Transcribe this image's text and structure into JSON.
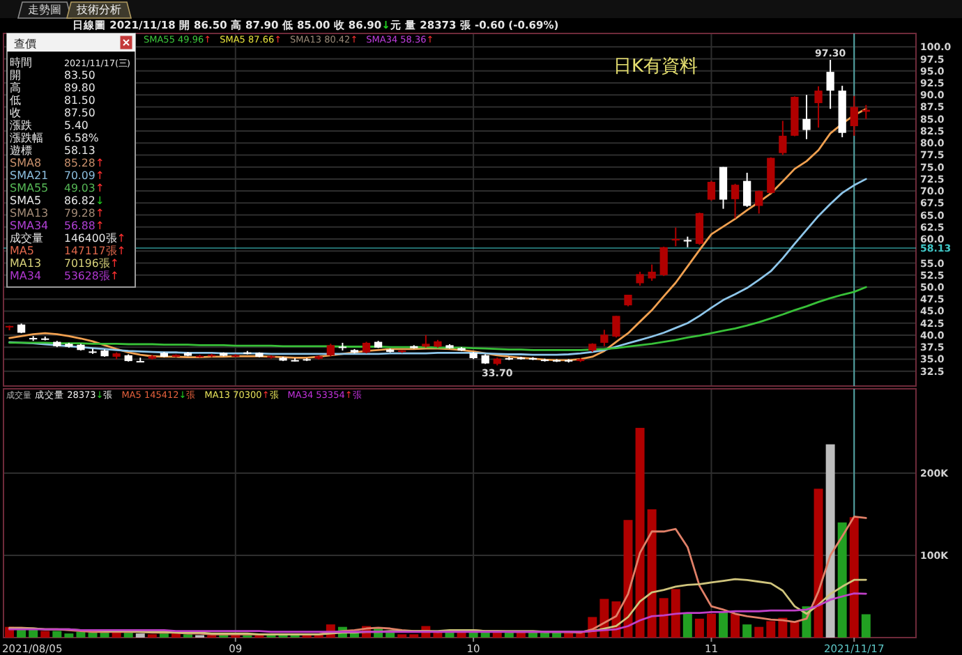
{
  "chart_data": [
    {
      "type": "candlestick",
      "subtitle": "日線圖  2021/11/18 開 86.50 高 87.90 低 85.00 收 86.90↓元 量 28373 張 -0.60 (-0.69%)",
      "categories": [
        null,
        null,
        null,
        null,
        null,
        null,
        null,
        null,
        null,
        null,
        null,
        null,
        null,
        null,
        null,
        null,
        null,
        null,
        null,
        "09",
        null,
        null,
        null,
        null,
        null,
        null,
        null,
        null,
        null,
        null,
        null,
        null,
        null,
        null,
        null,
        null,
        null,
        null,
        null,
        "10",
        null,
        null,
        null,
        null,
        null,
        null,
        null,
        null,
        null,
        null,
        null,
        null,
        null,
        null,
        null,
        null,
        null,
        null,
        null,
        "11",
        null,
        null,
        null,
        null,
        null,
        null,
        null,
        null,
        null,
        null,
        null,
        "2021/11/17",
        null
      ],
      "ohlc": [
        [
          41.6,
          42.0,
          41.0,
          41.9
        ],
        [
          42.2,
          42.4,
          40.4,
          40.5
        ],
        [
          39.4,
          39.8,
          38.8,
          39.2
        ],
        [
          39.3,
          39.7,
          38.9,
          39.3
        ],
        [
          38.6,
          38.8,
          37.5,
          37.7
        ],
        [
          38.2,
          38.4,
          37.4,
          37.6
        ],
        [
          38.0,
          38.2,
          36.8,
          36.9
        ],
        [
          36.6,
          37.2,
          36.1,
          36.6
        ],
        [
          36.8,
          37.0,
          35.5,
          35.6
        ],
        [
          35.5,
          36.4,
          35.0,
          36.2
        ],
        [
          35.8,
          36.0,
          34.5,
          34.6
        ],
        [
          34.6,
          35.3,
          34.4,
          34.6
        ],
        [
          35.1,
          35.9,
          34.9,
          35.6
        ],
        [
          36.3,
          36.5,
          35.4,
          35.5
        ],
        [
          35.5,
          36.0,
          35.4,
          35.9
        ],
        [
          36.3,
          36.5,
          35.6,
          35.7
        ],
        [
          35.5,
          35.9,
          35.3,
          35.7
        ],
        [
          35.6,
          36.1,
          35.4,
          35.9
        ],
        [
          36.3,
          36.4,
          35.6,
          35.7
        ],
        [
          35.6,
          36.0,
          35.4,
          35.8
        ],
        [
          36.4,
          36.7,
          36.0,
          36.4
        ],
        [
          36.3,
          36.4,
          35.4,
          35.5
        ],
        [
          35.4,
          35.8,
          35.1,
          35.6
        ],
        [
          35.3,
          35.5,
          34.6,
          34.7
        ],
        [
          34.8,
          35.2,
          34.5,
          34.8
        ],
        [
          35.0,
          35.2,
          34.6,
          34.8
        ],
        [
          35.1,
          35.8,
          34.9,
          35.6
        ],
        [
          35.8,
          38.2,
          35.6,
          37.9
        ],
        [
          37.6,
          38.4,
          36.8,
          37.5
        ],
        [
          36.9,
          37.1,
          36.2,
          36.4
        ],
        [
          36.4,
          38.6,
          36.2,
          38.4
        ],
        [
          38.6,
          38.8,
          37.3,
          37.4
        ],
        [
          37.0,
          37.2,
          36.4,
          36.5
        ],
        [
          36.6,
          36.9,
          36.3,
          36.8
        ],
        [
          37.7,
          37.9,
          37.2,
          37.3
        ],
        [
          37.6,
          40.0,
          37.4,
          38.2
        ],
        [
          37.6,
          39.0,
          37.4,
          38.7
        ],
        [
          37.9,
          38.1,
          37.2,
          37.3
        ],
        [
          37.3,
          37.5,
          36.7,
          36.8
        ],
        [
          36.3,
          36.5,
          35.0,
          35.2
        ],
        [
          35.8,
          36.0,
          34.0,
          34.1
        ],
        [
          34.0,
          35.3,
          33.7,
          35.1
        ],
        [
          35.2,
          35.5,
          34.8,
          35.1
        ],
        [
          35.3,
          35.5,
          34.9,
          35.0
        ],
        [
          35.2,
          35.4,
          34.8,
          34.9
        ],
        [
          34.9,
          35.1,
          34.5,
          34.6
        ],
        [
          34.8,
          35.0,
          34.4,
          34.5
        ],
        [
          34.8,
          35.0,
          34.3,
          34.5
        ],
        [
          34.6,
          35.2,
          34.4,
          35.0
        ],
        [
          36.8,
          38.3,
          36.5,
          38.2
        ],
        [
          38.4,
          41.1,
          37.7,
          40.1
        ],
        [
          39.7,
          44.0,
          39.5,
          44.0
        ],
        [
          46.2,
          48.4,
          46.0,
          48.4
        ],
        [
          50.8,
          53.2,
          50.3,
          52.7
        ],
        [
          51.8,
          54.7,
          51.3,
          53.2
        ],
        [
          52.5,
          58.4,
          52.3,
          58.3
        ],
        [
          59.8,
          62.4,
          58.5,
          60.0
        ],
        [
          59.8,
          60.5,
          58.3,
          59.5
        ],
        [
          59.0,
          65.5,
          58.8,
          65.4
        ],
        [
          68.2,
          72.1,
          68.0,
          71.9
        ],
        [
          75.0,
          75.0,
          66.3,
          68.2
        ],
        [
          68.3,
          71.5,
          64.3,
          71.3
        ],
        [
          72.1,
          73.8,
          66.7,
          66.9
        ],
        [
          66.9,
          70.1,
          65.3,
          70.0
        ],
        [
          69.6,
          77.0,
          69.5,
          76.9
        ],
        [
          77.9,
          84.6,
          77.5,
          81.5
        ],
        [
          81.5,
          89.7,
          81.4,
          89.6
        ],
        [
          85.0,
          90.0,
          80.8,
          82.7
        ],
        [
          88.3,
          91.8,
          83.2,
          90.9
        ],
        [
          94.8,
          97.3,
          87.1,
          90.9
        ],
        [
          90.9,
          91.9,
          81.2,
          82.1
        ],
        [
          83.5,
          89.8,
          81.5,
          87.5
        ],
        [
          86.5,
          87.9,
          85.0,
          86.9
        ]
      ],
      "colors": [
        "#b00000",
        "#ffffff",
        "#ffffff",
        "#ffffff",
        "#ffffff",
        "#ffffff",
        "#ffffff",
        "#ffffff",
        "#ffffff",
        "#b00000",
        "#ffffff",
        "#ffffff",
        "#b00000",
        "#ffffff",
        "#b00000",
        "#ffffff",
        "#b00000",
        "#b00000",
        "#ffffff",
        "#b00000",
        "#ffffff",
        "#ffffff",
        "#b00000",
        "#ffffff",
        "#ffffff",
        "#ffffff",
        "#b00000",
        "#b00000",
        "#ffffff",
        "#ffffff",
        "#b00000",
        "#ffffff",
        "#ffffff",
        "#b00000",
        "#ffffff",
        "#b00000",
        "#b00000",
        "#ffffff",
        "#ffffff",
        "#ffffff",
        "#ffffff",
        "#b00000",
        "#ffffff",
        "#ffffff",
        "#ffffff",
        "#ffffff",
        "#ffffff",
        "#ffffff",
        "#b00000",
        "#b00000",
        "#b00000",
        "#b00000",
        "#b00000",
        "#b00000",
        "#b00000",
        "#b00000",
        "#b00000",
        "#ffffff",
        "#b00000",
        "#b00000",
        "#ffffff",
        "#b00000",
        "#ffffff",
        "#b00000",
        "#b00000",
        "#b00000",
        "#b00000",
        "#ffffff",
        "#b00000",
        "#ffffff",
        "#ffffff",
        "#b00000",
        "#b00000"
      ],
      "series": [
        {
          "type": "line",
          "color": "#f0a050",
          "values": [
            39.4,
            39.8,
            40.2,
            40.4,
            40.2,
            39.8,
            39.3,
            38.7,
            37.9,
            37.1,
            36.4,
            35.9,
            35.6,
            35.5,
            35.5,
            35.4,
            35.4,
            35.5,
            35.5,
            35.6,
            35.6,
            35.6,
            35.5,
            35.4,
            35.3,
            35.3,
            35.5,
            35.8,
            36.1,
            36.4,
            36.7,
            36.9,
            37.1,
            37.1,
            37.1,
            37.2,
            37.2,
            37.1,
            36.9,
            36.6,
            36.2,
            35.8,
            35.5,
            35.3,
            35.1,
            34.9,
            34.8,
            34.8,
            35.0,
            35.5,
            36.7,
            38.6,
            40.4,
            42.8,
            45.2,
            48.1,
            50.9,
            54.3,
            57.7,
            61.0,
            62.6,
            64.2,
            66.0,
            67.7,
            69.5,
            72.0,
            74.6,
            76.2,
            78.5,
            82.0,
            84.0,
            85.8,
            87.1
          ]
        },
        {
          "type": "line",
          "color": "#8ec6ea",
          "values": [
            38.5,
            38.4,
            38.3,
            38.1,
            37.9,
            37.7,
            37.5,
            37.3,
            37.1,
            36.9,
            36.7,
            36.6,
            36.5,
            36.4,
            36.4,
            36.3,
            36.3,
            36.3,
            36.2,
            36.2,
            36.2,
            36.2,
            36.1,
            36.1,
            36.1,
            36.1,
            36.1,
            36.1,
            36.1,
            36.1,
            36.1,
            36.1,
            36.2,
            36.2,
            36.2,
            36.2,
            36.3,
            36.3,
            36.3,
            36.3,
            36.2,
            36.1,
            36.0,
            36.0,
            35.9,
            35.9,
            35.9,
            36.0,
            36.2,
            36.5,
            36.9,
            37.6,
            38.3,
            39.0,
            39.7,
            40.5,
            41.5,
            42.5,
            44.0,
            45.7,
            47.3,
            48.5,
            49.8,
            51.5,
            53.3,
            56.0,
            59.0,
            61.9,
            64.8,
            67.3,
            69.6,
            71.2,
            72.5
          ]
        },
        {
          "type": "line",
          "color": "#38c038",
          "values": [
            38.4,
            38.4,
            38.4,
            38.4,
            38.3,
            38.3,
            38.3,
            38.2,
            38.2,
            38.2,
            38.1,
            38.1,
            38.1,
            38.0,
            38.0,
            38.0,
            37.9,
            37.9,
            37.9,
            37.8,
            37.8,
            37.8,
            37.8,
            37.7,
            37.7,
            37.7,
            37.7,
            37.7,
            37.6,
            37.6,
            37.6,
            37.6,
            37.5,
            37.5,
            37.5,
            37.5,
            37.4,
            37.4,
            37.4,
            37.3,
            37.2,
            37.1,
            37.0,
            37.0,
            36.9,
            36.9,
            36.9,
            36.9,
            36.9,
            37.0,
            37.1,
            37.3,
            37.6,
            37.9,
            38.2,
            38.6,
            39.0,
            39.5,
            39.9,
            40.4,
            40.9,
            41.4,
            42.0,
            42.7,
            43.5,
            44.3,
            45.2,
            46.0,
            46.9,
            47.7,
            48.4,
            49.0,
            50.0
          ]
        }
      ],
      "ylim": [
        29.4,
        102.8
      ],
      "yticks": [
        32.5,
        {
          "value": 35,
          "label": "35.0"
        },
        37.5,
        {
          "value": 40,
          "label": "40.0"
        },
        42.5,
        {
          "value": 45,
          "label": "45.0"
        },
        47.5,
        {
          "value": 50,
          "label": "50.0"
        },
        52.5,
        {
          "value": 55,
          "label": "55.0"
        },
        {
          "value": 57.5,
          "label": null
        },
        {
          "value": 60,
          "label": "60.0"
        },
        62.5,
        {
          "value": 65,
          "label": "65.0"
        },
        67.5,
        {
          "value": 70,
          "label": "70.0"
        },
        72.5,
        {
          "value": 75,
          "label": "75.0"
        },
        77.5,
        {
          "value": 80,
          "label": "80.0"
        },
        82.5,
        {
          "value": 85,
          "label": "85.0"
        },
        87.5,
        {
          "value": 90,
          "label": "90.0"
        },
        92.5,
        {
          "value": 95,
          "label": "95.0"
        },
        97.5,
        {
          "value": 100,
          "label": "100.0"
        }
      ],
      "grid": true,
      "tick_labels": "y",
      "ref_lines": [
        {
          "axis": "x",
          "value": "2021/11/17",
          "color": "#5cc4c4"
        },
        {
          "axis": "y",
          "value": 58.13,
          "label": "58.13",
          "color": "#40c8c8"
        }
      ],
      "annotations": [
        "走勢圖",
        "技術分析",
        "SMA55 49.96↑",
        "SMA5 87.66↑",
        "SMA13 80.42↑",
        "SMA34 58.36↑",
        "日K有資料",
        {
          "text": "97.30",
          "y": 97.3
        },
        {
          "text": "33.70",
          "y": 33.7
        }
      ]
    },
    {
      "type": "bar",
      "categories": [
        null,
        null,
        null,
        null,
        null,
        null,
        null,
        null,
        null,
        null,
        null,
        null,
        null,
        null,
        null,
        null,
        null,
        null,
        null,
        "09",
        null,
        null,
        null,
        null,
        null,
        null,
        null,
        null,
        null,
        null,
        null,
        null,
        null,
        null,
        null,
        null,
        null,
        null,
        null,
        "10",
        null,
        null,
        null,
        null,
        null,
        null,
        null,
        null,
        null,
        null,
        null,
        null,
        null,
        null,
        null,
        null,
        null,
        null,
        null,
        "11",
        null,
        null,
        null,
        null,
        null,
        null,
        null,
        null,
        null,
        null,
        null,
        "2021/11/17",
        null
      ],
      "series": [
        {
          "type": "bar",
          "values": [
            13000,
            11000,
            11000,
            8000,
            8000,
            5000,
            7000,
            6000,
            7000,
            7000,
            7000,
            5000,
            4000,
            5000,
            5000,
            4000,
            3000,
            3000,
            4000,
            3000,
            3000,
            3000,
            4000,
            4000,
            4000,
            3000,
            4000,
            16000,
            13000,
            7000,
            14000,
            12000,
            7000,
            4000,
            4000,
            14000,
            7000,
            9000,
            7000,
            9000,
            7000,
            7000,
            6000,
            7000,
            7000,
            7000,
            7000,
            6000,
            6000,
            25000,
            47000,
            44000,
            143000,
            255000,
            156000,
            48000,
            59000,
            30000,
            23000,
            29000,
            31000,
            29000,
            16000,
            13000,
            20000,
            24000,
            19000,
            38000,
            181000,
            235000,
            140000,
            146400,
            28373
          ],
          "colors": [
            "#b00000",
            "#22a022",
            "#22a022",
            "#b00000",
            "#22a022",
            "#22a022",
            "#22a022",
            "#22a022",
            "#22a022",
            "#b00000",
            "#22a022",
            "#bdbdbd",
            "#b00000",
            "#22a022",
            "#b00000",
            "#22a022",
            "#bdbdbd",
            "#b00000",
            "#22a022",
            "#b00000",
            "#22a022",
            "#b00000",
            "#22a022",
            "#22a022",
            "#22a022",
            "#b00000",
            "#b00000",
            "#b00000",
            "#22a022",
            "#22a022",
            "#b00000",
            "#22a022",
            "#22a022",
            "#b00000",
            "#b00000",
            "#b00000",
            "#b00000",
            "#22a022",
            "#b00000",
            "#22a022",
            "#22a022",
            "#b00000",
            "#22a022",
            "#b00000",
            "#22a022",
            "#22a022",
            "#22a022",
            "#b00000",
            "#b00000",
            "#b00000",
            "#b00000",
            "#b00000",
            "#b00000",
            "#b00000",
            "#b00000",
            "#b00000",
            "#b00000",
            "#22a022",
            "#b00000",
            "#b00000",
            "#22a022",
            "#b00000",
            "#22a022",
            "#b00000",
            "#b00000",
            "#b00000",
            "#b00000",
            "#22a022",
            "#b00000",
            "#bdbdbd",
            "#22a022",
            "#b00000",
            "#22a022"
          ]
        },
        {
          "type": "line",
          "color": "#e08068",
          "values": [
            12000,
            12000,
            11000,
            10000,
            10000,
            9000,
            8000,
            7000,
            7000,
            7000,
            7000,
            7000,
            6000,
            6000,
            6000,
            5000,
            5000,
            4000,
            4000,
            4000,
            4000,
            4000,
            4000,
            4000,
            4000,
            4000,
            4000,
            6000,
            8000,
            9000,
            11000,
            12000,
            11000,
            9000,
            8000,
            8000,
            7000,
            8000,
            8000,
            9000,
            8000,
            8000,
            7000,
            7000,
            7000,
            7000,
            7000,
            7000,
            6000,
            10000,
            18000,
            26000,
            53000,
            103000,
            129000,
            129000,
            132000,
            110000,
            63000,
            38000,
            34000,
            29000,
            26000,
            24000,
            22000,
            21000,
            19000,
            23000,
            56000,
            100000,
            123000,
            147117,
            145412
          ]
        },
        {
          "type": "line",
          "color": "#cfc47c",
          "values": [
            11000,
            11000,
            11000,
            10000,
            10000,
            10000,
            9000,
            9000,
            8000,
            8000,
            8000,
            7000,
            7000,
            7000,
            6000,
            6000,
            6000,
            5000,
            5000,
            5000,
            5000,
            4000,
            4000,
            4000,
            4000,
            4000,
            4000,
            5000,
            6000,
            6000,
            7000,
            7000,
            8000,
            8000,
            8000,
            8000,
            8000,
            9000,
            9000,
            9000,
            8000,
            8000,
            8000,
            8000,
            8000,
            7000,
            7000,
            7000,
            7000,
            8000,
            11000,
            14000,
            25000,
            44000,
            55000,
            58000,
            62000,
            64000,
            65000,
            67000,
            69000,
            71000,
            70000,
            68000,
            66000,
            57000,
            38000,
            29000,
            40000,
            53000,
            62000,
            70196,
            70300
          ]
        },
        {
          "type": "line",
          "color": "#c040c8",
          "values": [
            10000,
            10000,
            10000,
            10000,
            10000,
            10000,
            9000,
            9000,
            9000,
            9000,
            9000,
            9000,
            9000,
            9000,
            8000,
            8000,
            8000,
            8000,
            8000,
            8000,
            8000,
            8000,
            7000,
            7000,
            7000,
            7000,
            7000,
            7000,
            7000,
            7000,
            7000,
            7000,
            7000,
            7000,
            7000,
            7000,
            7000,
            7000,
            7000,
            7000,
            7000,
            7000,
            7000,
            7000,
            7000,
            7000,
            7000,
            7000,
            7000,
            8000,
            9000,
            10000,
            14000,
            21000,
            26000,
            27000,
            29000,
            30000,
            30000,
            31000,
            31000,
            32000,
            32000,
            32000,
            33000,
            33000,
            33000,
            34000,
            39000,
            46000,
            50000,
            53638,
            53354
          ]
        }
      ],
      "ylim": [
        0,
        302500
      ],
      "yticks": [
        {
          "value": 100000,
          "label": "100K"
        },
        {
          "value": 200000,
          "label": "200K"
        }
      ],
      "grid": true,
      "ref_lines": [
        {
          "axis": "x",
          "value": "2021/11/17",
          "color": "#5cc4c4"
        }
      ],
      "annotations": [
        "成交量",
        "成交量 28373↓張",
        "MA5 145412↓張",
        "MA13 70300↑張",
        "MA34 53354↑張",
        "2021/08/05"
      ]
    },
    {
      "type": "other",
      "title": "查價",
      "annotations": [
        "時間 2021/11/17(三)",
        "開 83.50",
        "高 89.80",
        "低 81.50",
        "收 87.50",
        "漲跌 5.40",
        "漲跌幅 6.58%",
        "遊標 58.13",
        "SMA8 85.28↑",
        "SMA21 70.09↑",
        "SMA55 49.03↑",
        "SMA5 86.82↓",
        "SMA13 79.28↑",
        "SMA34 56.88↑",
        "成交量 146400張↑",
        "MA5 147117張↑",
        "MA13 70196張↑",
        "MA34 53628張↑"
      ]
    }
  ]
}
